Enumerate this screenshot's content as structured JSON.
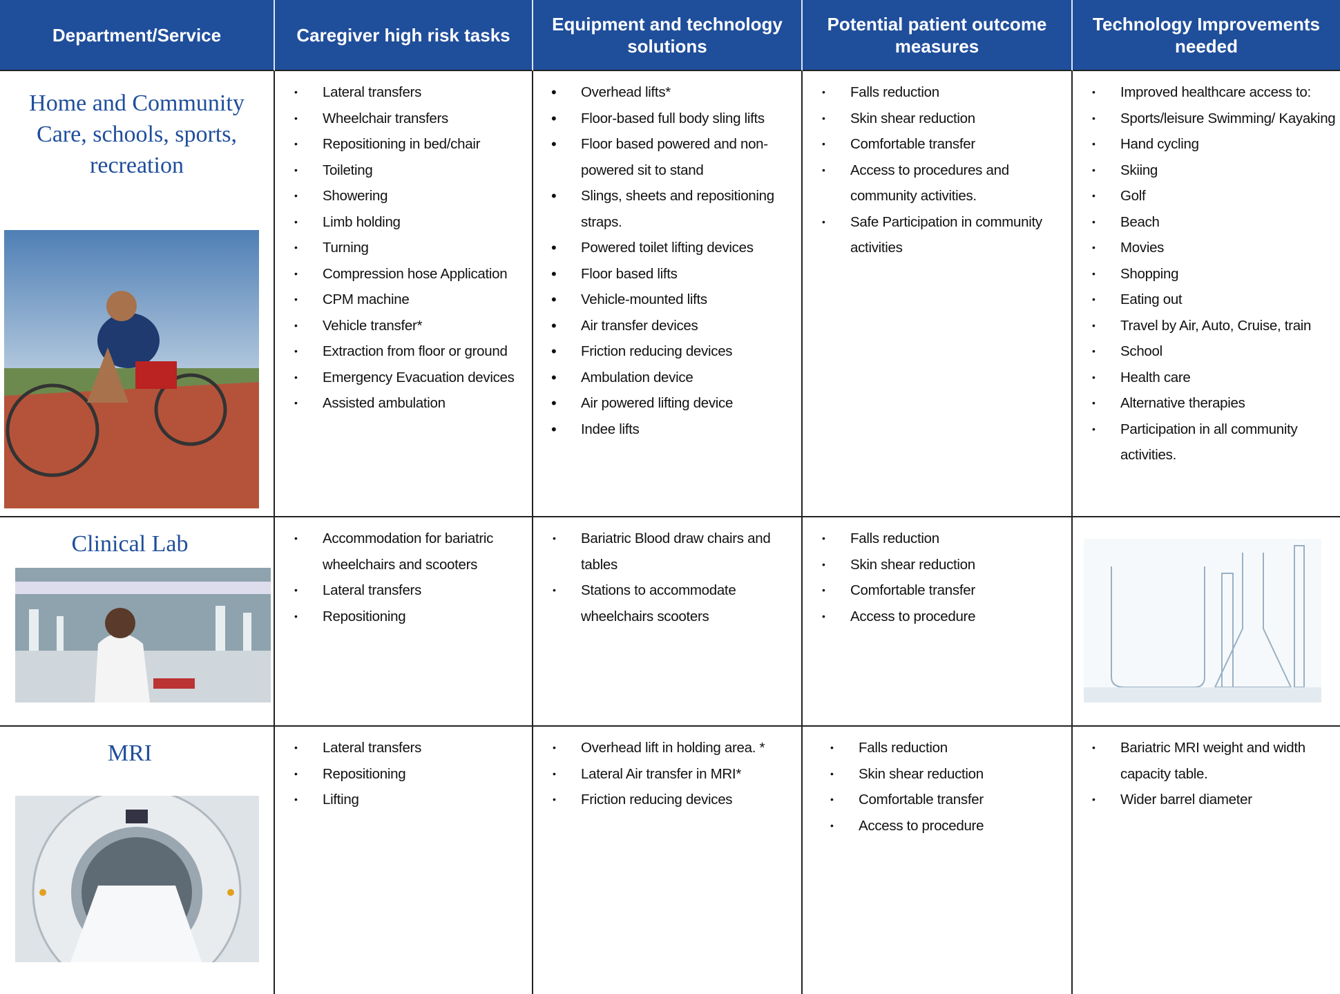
{
  "header": [
    "Department/Service",
    "Caregiver high risk tasks",
    "Equipment and technology solutions",
    "Potential patient outcome measures",
    "Technology Improvements needed"
  ],
  "rows": [
    {
      "department": "Home and Community Care, schools, sports, recreation",
      "tasks": [
        "Lateral transfers",
        "Wheelchair transfers",
        "Repositioning in bed/chair",
        "Toileting",
        "Showering",
        "Limb holding",
        "Turning",
        "Compression hose Application",
        "CPM machine",
        "Vehicle transfer*",
        "Extraction from floor or ground",
        "Emergency Evacuation devices",
        "Assisted ambulation"
      ],
      "solutions": [
        "Overhead lifts*",
        "Floor-based full body sling lifts",
        "Floor based powered and non-powered sit to stand",
        "Slings, sheets and repositioning straps.",
        "Powered toilet lifting devices",
        "Floor based lifts",
        "Vehicle-mounted lifts",
        "Air transfer devices",
        "Friction reducing devices",
        "Ambulation device",
        "Air powered lifting device",
        "Indee lifts"
      ],
      "outcomes": [
        "Falls reduction",
        "Skin shear reduction",
        "Comfortable transfer",
        "Access to procedures and community activities.",
        "Safe Participation in community activities"
      ],
      "improvements": [
        "Improved healthcare access to:",
        "Sports/leisure Swimming/ Kayaking",
        "Hand cycling",
        "Skiing",
        "Golf",
        "Beach",
        "Movies",
        "Shopping",
        "Eating out",
        "Travel by Air, Auto, Cruise, train",
        "School",
        "Health care",
        "Alternative therapies",
        "Participation in all community activities."
      ]
    },
    {
      "department": "Clinical Lab",
      "tasks": [
        "Accommodation for bariatric wheelchairs and scooters",
        "Lateral transfers",
        "Repositioning"
      ],
      "solutions": [
        "Bariatric Blood draw chairs and tables",
        "Stations to accommodate wheelchairs scooters"
      ],
      "outcomes": [
        "Falls reduction",
        "Skin shear reduction",
        "Comfortable transfer",
        "Access to procedure"
      ],
      "improvements": []
    },
    {
      "department": "MRI",
      "tasks": [
        "Lateral transfers",
        "Repositioning",
        "Lifting"
      ],
      "solutions": [
        "Overhead lift in holding area. *",
        "Lateral Air transfer in MRI*",
        "Friction reducing devices"
      ],
      "outcomes": [
        "Falls reduction",
        "Skin shear reduction",
        "Comfortable transfer",
        "Access to procedure"
      ],
      "improvements": [
        "Bariatric MRI weight and width capacity table.",
        "Wider barrel diameter"
      ]
    }
  ]
}
